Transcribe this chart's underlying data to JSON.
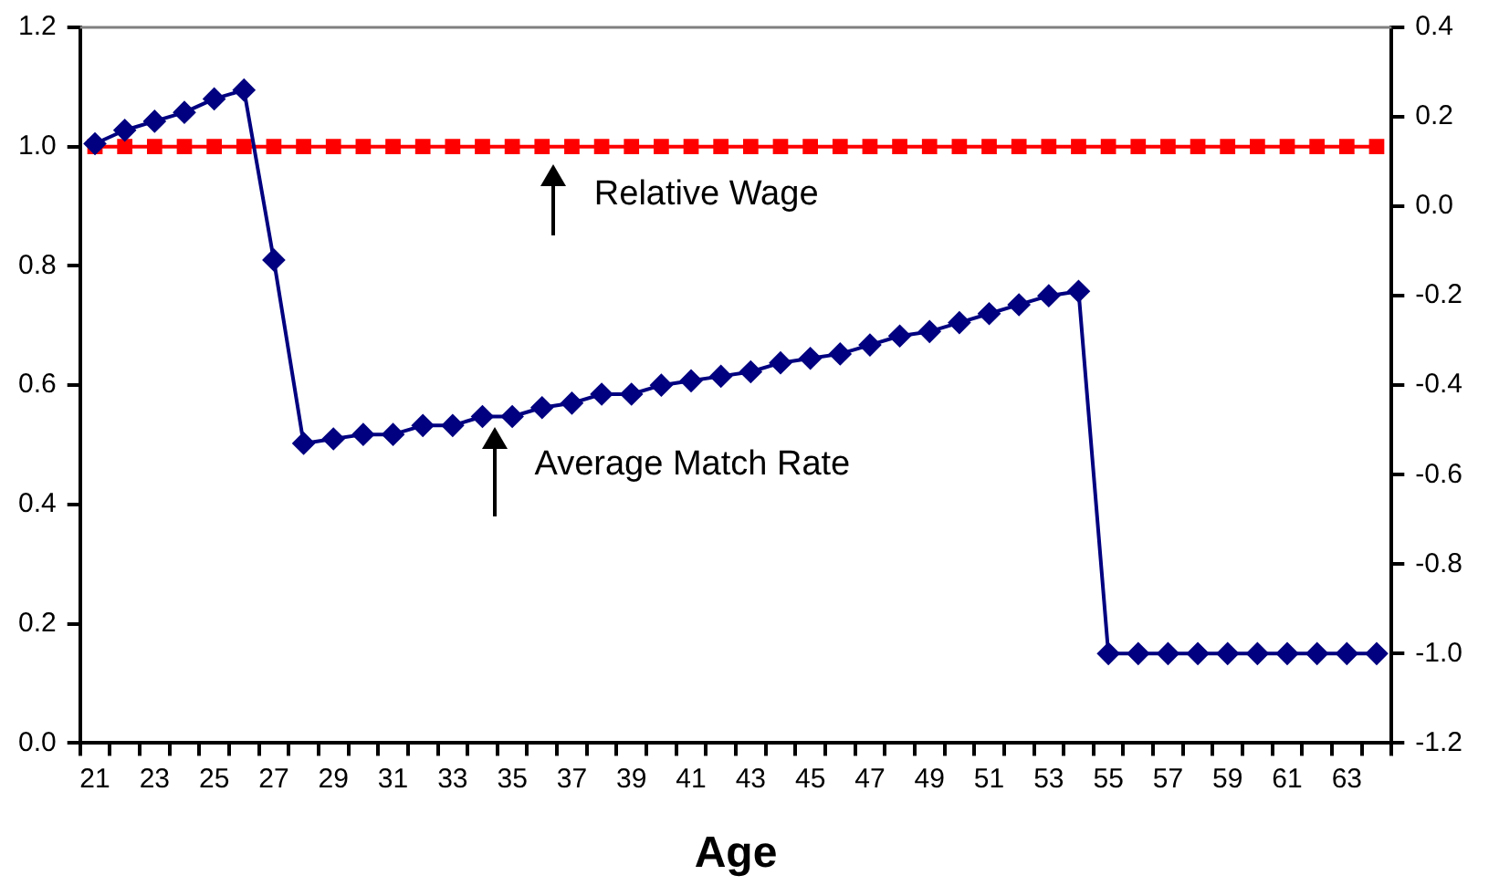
{
  "chart_data": {
    "type": "line",
    "xlabel": "Age",
    "categories": [
      "21",
      null,
      "23",
      null,
      "25",
      null,
      "27",
      null,
      "29",
      null,
      "31",
      null,
      "33",
      null,
      "35",
      null,
      "37",
      null,
      "39",
      null,
      "41",
      null,
      "43",
      null,
      "45",
      null,
      "47",
      null,
      "49",
      null,
      "51",
      null,
      "53",
      null,
      "55",
      null,
      "57",
      null,
      "59",
      null,
      "61",
      null,
      "63",
      null
    ],
    "series": [
      {
        "color": "#ff0000",
        "marker": "square",
        "values": [
          1.0,
          1.0,
          1.0,
          1.0,
          1.0,
          1.0,
          1.0,
          1.0,
          1.0,
          1.0,
          1.0,
          1.0,
          1.0,
          1.0,
          1.0,
          1.0,
          1.0,
          1.0,
          1.0,
          1.0,
          1.0,
          1.0,
          1.0,
          1.0,
          1.0,
          1.0,
          1.0,
          1.0,
          1.0,
          1.0,
          1.0,
          1.0,
          1.0,
          1.0,
          1.0,
          1.0,
          1.0,
          1.0,
          1.0,
          1.0,
          1.0,
          1.0,
          1.0,
          1.0
        ]
      },
      {
        "color": "#000080",
        "marker": "diamond",
        "axis": "y2",
        "values": [
          0.14,
          0.17,
          0.19,
          0.21,
          0.24,
          0.26,
          -0.12,
          -0.53,
          -0.52,
          -0.51,
          -0.51,
          -0.49,
          -0.49,
          -0.47,
          -0.47,
          -0.45,
          -0.44,
          -0.42,
          -0.42,
          -0.4,
          -0.39,
          -0.38,
          -0.37,
          -0.35,
          -0.34,
          -0.33,
          -0.31,
          -0.29,
          -0.28,
          -0.26,
          -0.24,
          -0.22,
          -0.2,
          -0.19,
          -1.0,
          -1.0,
          -1.0,
          -1.0,
          -1.0,
          -1.0,
          -1.0,
          -1.0,
          -1.0,
          -1.0
        ]
      }
    ],
    "ylim": [
      0,
      1.2
    ],
    "yticks": [
      {
        "value": 0,
        "label": "0.0"
      },
      {
        "value": 0.2,
        "label": "0.2"
      },
      {
        "value": 0.4,
        "label": "0.4"
      },
      {
        "value": 0.6,
        "label": "0.6"
      },
      {
        "value": 0.8,
        "label": "0.8"
      },
      {
        "value": 1,
        "label": "1.0"
      },
      {
        "value": 1.2,
        "label": "1.2"
      }
    ],
    "y2lim": [
      -1.2,
      0.4
    ],
    "y2ticks": [
      {
        "value": -1.2,
        "label": "-1.2"
      },
      {
        "value": -1,
        "label": "-1.0"
      },
      {
        "value": -0.8,
        "label": "-0.8"
      },
      {
        "value": -0.6,
        "label": "-0.6"
      },
      {
        "value": -0.4,
        "label": "-0.4"
      },
      {
        "value": -0.2,
        "label": "-0.2"
      },
      {
        "value": 0,
        "label": "0.0"
      },
      {
        "value": 0.2,
        "label": "0.2"
      },
      {
        "value": 0.4,
        "label": "0.4"
      }
    ],
    "grid": false,
    "legend": false,
    "annotations": [
      "Relative Wage",
      "Average Match Rate"
    ]
  }
}
